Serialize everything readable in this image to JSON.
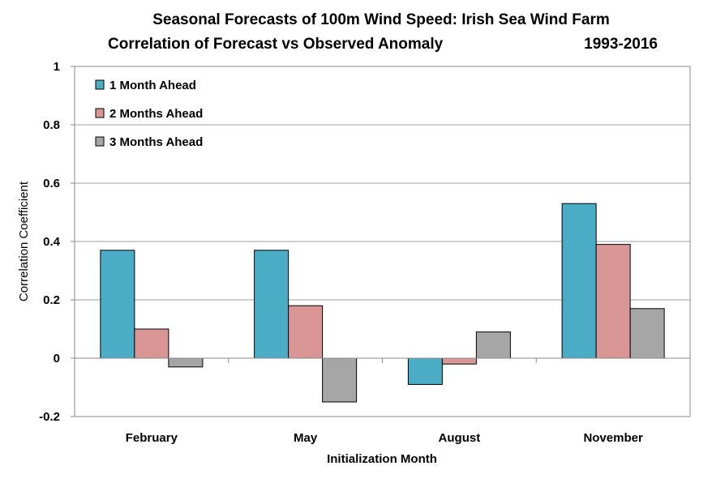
{
  "chart_data": {
    "type": "bar",
    "title_line1": "Seasonal Forecasts of 100m Wind Speed: Irish Sea Wind Farm",
    "title_line2": "Correlation of Forecast vs Observed Anomaly",
    "period": "1993-2016",
    "xlabel": "Initialization Month",
    "ylabel": "Correlation Coefficient",
    "categories": [
      "February",
      "May",
      "August",
      "November"
    ],
    "series": [
      {
        "name": "1 Month Ahead",
        "color": "#4bacc6",
        "values": [
          0.37,
          0.37,
          -0.09,
          0.53
        ]
      },
      {
        "name": "2 Months Ahead",
        "color": "#d99694",
        "values": [
          0.1,
          0.18,
          -0.02,
          0.39
        ]
      },
      {
        "name": "3 Months Ahead",
        "color": "#a6a6a6",
        "values": [
          -0.03,
          -0.15,
          0.09,
          0.17
        ]
      }
    ],
    "ylim": [
      -0.2,
      1
    ],
    "yticks": [
      "-0.2",
      "0",
      "0.2",
      "0.4",
      "0.6",
      "0.8",
      "1"
    ],
    "grid": true,
    "legend_position": "top-left"
  }
}
